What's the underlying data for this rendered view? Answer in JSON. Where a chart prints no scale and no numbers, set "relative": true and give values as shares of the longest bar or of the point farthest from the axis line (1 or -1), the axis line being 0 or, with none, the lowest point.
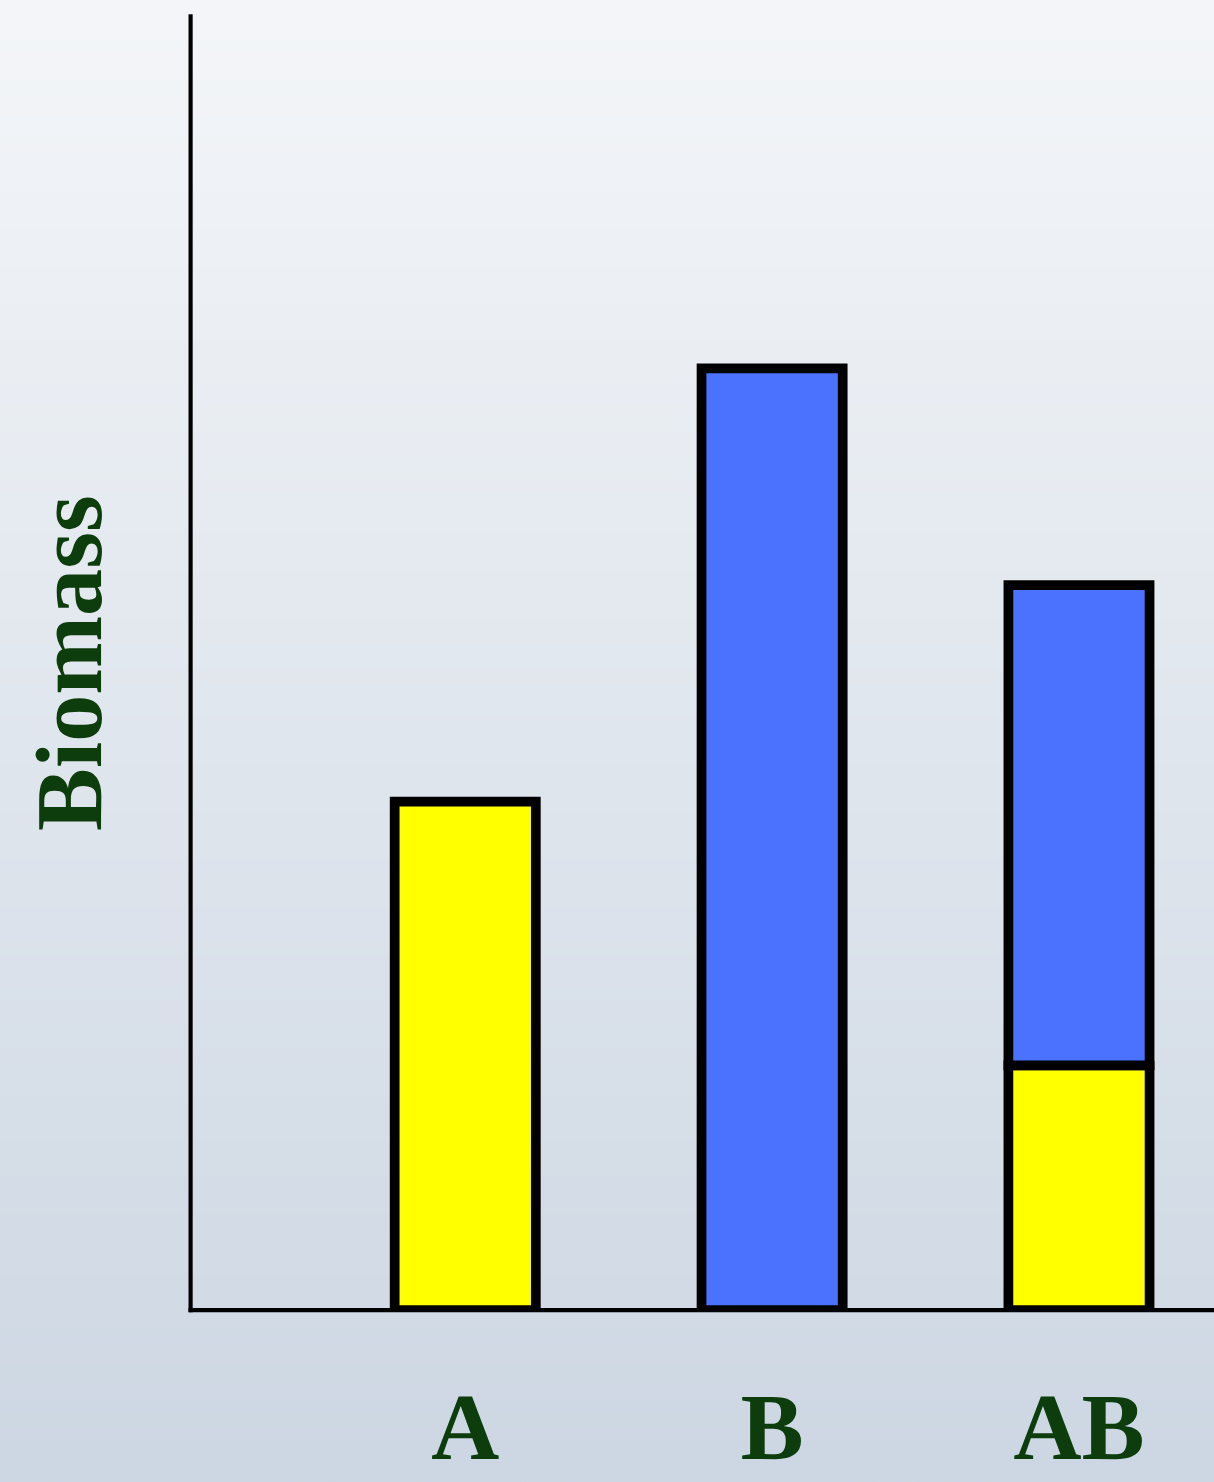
{
  "chart_data": {
    "type": "bar",
    "ylabel": "Biomass",
    "categories": [
      "A",
      "B",
      "AB"
    ],
    "stacked": true,
    "relative": true,
    "grid": false,
    "legend": false,
    "series": [
      {
        "color": "#ffff00",
        "values": [
          0.54,
          null,
          0.26
        ]
      },
      {
        "color": "#4a72ff",
        "values": [
          null,
          1,
          0.51
        ]
      }
    ]
  }
}
